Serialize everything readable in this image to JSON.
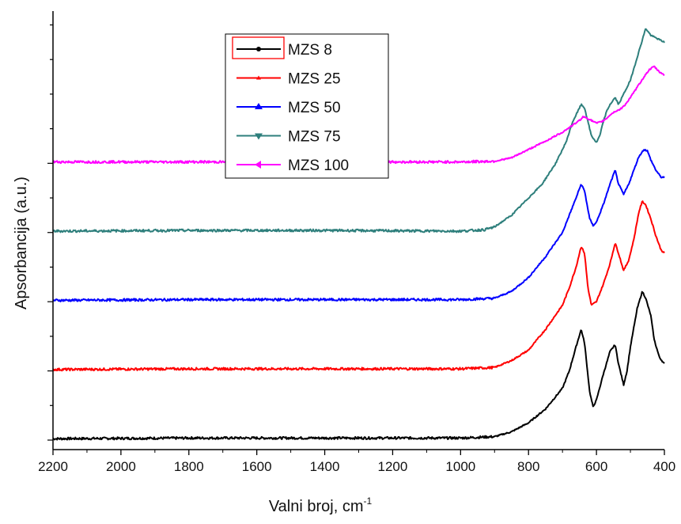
{
  "chart_data": {
    "type": "line",
    "xlabel": "Valni broj, cm",
    "xlabel_sup": "-1",
    "ylabel": "Apsorbancija (a.u.)",
    "xlim": [
      2200,
      400
    ],
    "x_reversed": true,
    "x_ticks": [
      "2200",
      "2000",
      "1800",
      "1600",
      "1400",
      "1200",
      "1000",
      "800",
      "600",
      "400"
    ],
    "y_ticks_labeled": false,
    "legend_position": "top-center",
    "series": [
      {
        "name": "MZS 8",
        "color": "#000000",
        "x": [
          2200,
          1800,
          1400,
          1000,
          900,
          850,
          800,
          750,
          700,
          680,
          660,
          645,
          635,
          620,
          610,
          600,
          580,
          560,
          545,
          535,
          520,
          510,
          500,
          480,
          465,
          455,
          440,
          430,
          415,
          400
        ],
        "y": [
          0.02,
          0.03,
          0.03,
          0.03,
          0.05,
          0.12,
          0.25,
          0.45,
          0.75,
          1.0,
          1.35,
          1.6,
          1.4,
          0.7,
          0.48,
          0.58,
          0.95,
          1.28,
          1.38,
          1.1,
          0.8,
          1.0,
          1.35,
          1.9,
          2.15,
          2.05,
          1.8,
          1.45,
          1.2,
          1.1
        ]
      },
      {
        "name": "MZS 25",
        "color": "#ff0000",
        "x": [
          2200,
          1800,
          1400,
          1000,
          900,
          850,
          800,
          750,
          700,
          680,
          660,
          645,
          635,
          625,
          615,
          600,
          580,
          560,
          545,
          535,
          520,
          505,
          490,
          475,
          465,
          455,
          440,
          425,
          410,
          400
        ],
        "y": [
          1.02,
          1.03,
          1.03,
          1.03,
          1.05,
          1.15,
          1.3,
          1.6,
          1.95,
          2.2,
          2.5,
          2.8,
          2.7,
          2.2,
          1.95,
          2.0,
          2.25,
          2.55,
          2.85,
          2.7,
          2.45,
          2.6,
          2.9,
          3.3,
          3.45,
          3.4,
          3.2,
          2.95,
          2.75,
          2.7
        ]
      },
      {
        "name": "MZS 50",
        "color": "#0000ff",
        "x": [
          2200,
          1800,
          1400,
          1000,
          900,
          850,
          800,
          750,
          700,
          680,
          660,
          645,
          635,
          620,
          610,
          600,
          580,
          560,
          545,
          535,
          520,
          505,
          490,
          475,
          460,
          450,
          440,
          425,
          410,
          400
        ],
        "y": [
          2.02,
          2.03,
          2.03,
          2.03,
          2.05,
          2.15,
          2.35,
          2.65,
          3.0,
          3.25,
          3.5,
          3.7,
          3.6,
          3.2,
          3.1,
          3.15,
          3.4,
          3.7,
          3.9,
          3.7,
          3.55,
          3.7,
          3.9,
          4.1,
          4.2,
          4.18,
          4.05,
          3.9,
          3.8,
          3.8
        ]
      },
      {
        "name": "MZS 75",
        "color": "#2e7f7c",
        "x": [
          2200,
          1800,
          1400,
          1000,
          930,
          900,
          850,
          800,
          760,
          720,
          690,
          670,
          655,
          645,
          635,
          625,
          615,
          600,
          590,
          580,
          570,
          560,
          545,
          535,
          520,
          500,
          485,
          470,
          455,
          440,
          420,
          400
        ],
        "y": [
          3.02,
          3.03,
          3.03,
          3.02,
          3.04,
          3.08,
          3.25,
          3.5,
          3.7,
          4.0,
          4.3,
          4.6,
          4.75,
          4.85,
          4.8,
          4.6,
          4.4,
          4.3,
          4.4,
          4.6,
          4.75,
          4.85,
          4.95,
          4.85,
          5.0,
          5.2,
          5.45,
          5.7,
          5.95,
          5.85,
          5.8,
          5.75
        ]
      },
      {
        "name": "MZS 100",
        "color": "#ff00ff",
        "x": [
          2200,
          1800,
          1400,
          1000,
          900,
          850,
          800,
          750,
          700,
          670,
          650,
          640,
          630,
          615,
          600,
          585,
          570,
          560,
          545,
          530,
          515,
          500,
          480,
          460,
          445,
          430,
          415,
          400
        ],
        "y": [
          4.02,
          4.02,
          4.02,
          4.02,
          4.03,
          4.08,
          4.2,
          4.32,
          4.45,
          4.55,
          4.62,
          4.67,
          4.66,
          4.62,
          4.58,
          4.6,
          4.65,
          4.7,
          4.75,
          4.78,
          4.85,
          4.95,
          5.1,
          5.25,
          5.35,
          5.4,
          5.32,
          5.28
        ]
      }
    ]
  }
}
